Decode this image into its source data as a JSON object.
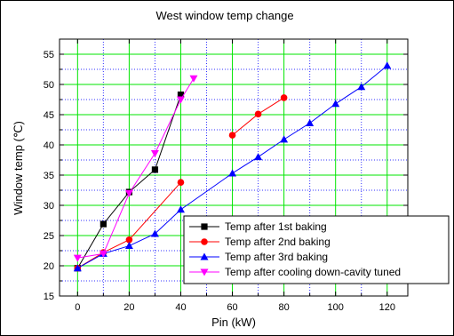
{
  "chart_data": {
    "type": "line",
    "title": "West window temp change",
    "xlabel": "Pin (kW)",
    "ylabel": "Window temp (℃)",
    "xlim": [
      -7,
      128
    ],
    "ylim": [
      15,
      57.5
    ],
    "xticks": [
      0,
      20,
      40,
      60,
      80,
      100,
      120
    ],
    "yticks": [
      15,
      20,
      25,
      30,
      35,
      40,
      45,
      50,
      55
    ],
    "grid": true,
    "legend_position": "bottom-right",
    "colors": {
      "major_grid": "#00e600",
      "minor_grid": "#3333ff",
      "axis": "#000000"
    },
    "series": [
      {
        "name": "Temp after 1st baking",
        "color": "#000000",
        "marker": "square",
        "x": [
          0,
          10,
          20,
          30,
          40
        ],
        "y": [
          19.6,
          26.9,
          32.2,
          35.9,
          48.3
        ]
      },
      {
        "name": "Temp after 2nd baking",
        "color": "#ff0000",
        "marker": "circle",
        "x": [
          0,
          10,
          20,
          40
        ],
        "y": [
          19.6,
          22.2,
          24.3,
          33.8
        ]
      },
      {
        "name": "Temp after 3rd baking",
        "color": "#0000ff",
        "marker": "triangle-up",
        "x": [
          0,
          10,
          20,
          30,
          40,
          60,
          70,
          80,
          90,
          100,
          110,
          120
        ],
        "y": [
          19.6,
          22.0,
          23.3,
          25.3,
          29.3,
          35.3,
          38.0,
          40.9,
          43.6,
          46.8,
          49.6,
          53.1
        ]
      },
      {
        "name": "Temp after cooling down-cavity tuned",
        "color": "#ff00ff",
        "marker": "triangle-down",
        "x": [
          0,
          10,
          20,
          30,
          40,
          45
        ],
        "y": [
          21.3,
          22.0,
          32.0,
          38.6,
          47.5,
          51.0
        ]
      }
    ],
    "extra_series": [
      {
        "name": "Temp after 2nd baking",
        "color": "#ff0000",
        "marker": "circle",
        "x": [
          60,
          70,
          80
        ],
        "y": [
          41.6,
          45.1,
          47.8
        ]
      }
    ]
  }
}
